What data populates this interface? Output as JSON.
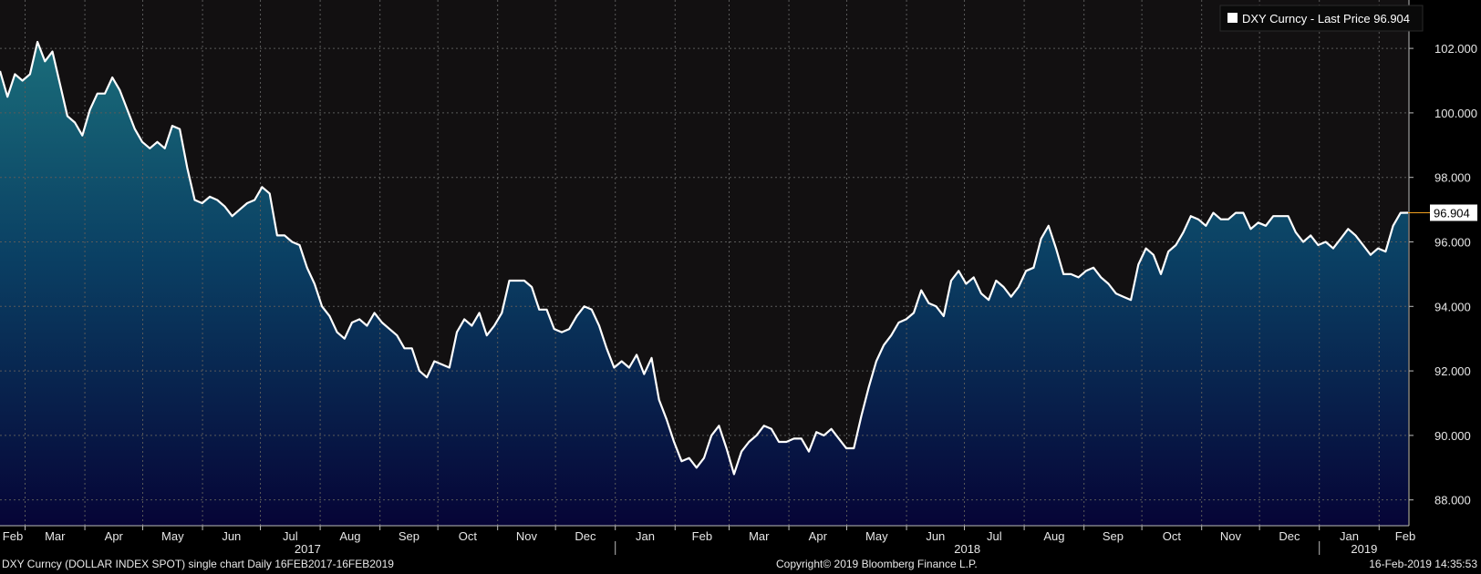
{
  "chart_data": {
    "type": "area",
    "legend": {
      "label": "DXY Curncy - Last Price 96.904",
      "placement": "top-right"
    },
    "last_value_label": "96.904",
    "last_value": 96.904,
    "ylim": [
      87.2,
      103.5
    ],
    "y_ticks": [
      "102.000",
      "100.000",
      "98.000",
      "96.000",
      "94.000",
      "92.000",
      "90.000",
      "88.000"
    ],
    "y_tick_values": [
      102,
      100,
      98,
      96,
      94,
      92,
      90,
      88
    ],
    "grid": true,
    "x_month_labels": [
      "Feb",
      "Mar",
      "Apr",
      "May",
      "Jun",
      "Jul",
      "Aug",
      "Sep",
      "Oct",
      "Nov",
      "Dec",
      "Jan",
      "Feb",
      "Mar",
      "Apr",
      "May",
      "Jun",
      "Jul",
      "Aug",
      "Sep",
      "Oct",
      "Nov",
      "Dec",
      "Jan",
      "Feb"
    ],
    "x_year_labels": [
      "2017",
      "2018",
      "2019"
    ],
    "x_range": [
      "2017-02-16",
      "2019-02-16"
    ],
    "series": [
      {
        "values": [
          101.3,
          100.5,
          101.2,
          101.0,
          101.2,
          102.2,
          101.6,
          101.9,
          100.9,
          99.9,
          99.7,
          99.3,
          100.1,
          100.6,
          100.6,
          101.1,
          100.7,
          100.1,
          99.5,
          99.1,
          98.9,
          99.1,
          98.9,
          99.6,
          99.5,
          98.3,
          97.3,
          97.2,
          97.4,
          97.3,
          97.1,
          96.8,
          97.0,
          97.2,
          97.3,
          97.7,
          97.5,
          96.2,
          96.2,
          96.0,
          95.9,
          95.2,
          94.7,
          94.0,
          93.7,
          93.2,
          93.0,
          93.5,
          93.6,
          93.4,
          93.8,
          93.5,
          93.3,
          93.1,
          92.7,
          92.7,
          92.0,
          91.8,
          92.3,
          92.2,
          92.1,
          93.2,
          93.6,
          93.4,
          93.8,
          93.1,
          93.4,
          93.8,
          94.8,
          94.8,
          94.8,
          94.6,
          93.9,
          93.9,
          93.3,
          93.2,
          93.3,
          93.7,
          94.0,
          93.9,
          93.4,
          92.7,
          92.1,
          92.3,
          92.1,
          92.5,
          91.9,
          92.4,
          91.1,
          90.5,
          89.8,
          89.2,
          89.3,
          89.0,
          89.3,
          90.0,
          90.3,
          89.6,
          88.8,
          89.5,
          89.8,
          90.0,
          90.3,
          90.2,
          89.8,
          89.8,
          89.9,
          89.9,
          89.5,
          90.1,
          90.0,
          90.2,
          89.9,
          89.6,
          89.6,
          90.6,
          91.5,
          92.3,
          92.8,
          93.1,
          93.5,
          93.6,
          93.8,
          94.5,
          94.1,
          94.0,
          93.7,
          94.8,
          95.1,
          94.7,
          94.9,
          94.4,
          94.2,
          94.8,
          94.6,
          94.3,
          94.6,
          95.1,
          95.2,
          96.1,
          96.5,
          95.8,
          95.0,
          95.0,
          94.9,
          95.1,
          95.2,
          94.9,
          94.7,
          94.4,
          94.3,
          94.2,
          95.3,
          95.8,
          95.6,
          95.0,
          95.7,
          95.9,
          96.3,
          96.8,
          96.7,
          96.5,
          96.9,
          96.7,
          96.7,
          96.9,
          96.9,
          96.4,
          96.6,
          96.5,
          96.8,
          96.8,
          96.8,
          96.3,
          96.0,
          96.2,
          95.9,
          96.0,
          95.8,
          96.1,
          96.4,
          96.2,
          95.9,
          95.6,
          95.8,
          95.7,
          96.5,
          96.9,
          96.904
        ]
      }
    ]
  },
  "footer": {
    "description": "DXY Curncy (DOLLAR INDEX SPOT) single chart  Daily 16FEB2017-16FEB2019",
    "copyright": "Copyright© 2019 Bloomberg Finance L.P.",
    "timestamp": "16-Feb-2019 14:35:53"
  },
  "colors": {
    "background": "#000000",
    "plot_background": "#121011",
    "fill_top": "#1a6d7a",
    "fill_mid": "#0a3f63",
    "fill_bottom": "#060436",
    "line": "#ffffff",
    "last_price_marker": "#f0a020"
  }
}
